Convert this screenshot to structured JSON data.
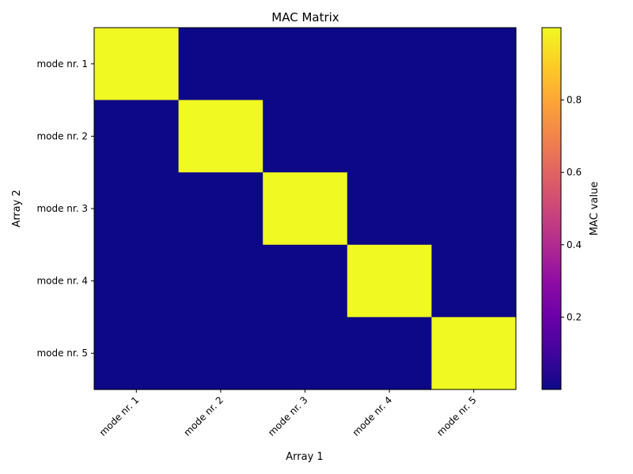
{
  "chart_data": {
    "type": "heatmap",
    "title": "MAC Matrix",
    "xlabel": "Array 1",
    "ylabel": "Array 2",
    "x_categories": [
      "mode nr. 1",
      "mode nr. 2",
      "mode nr. 3",
      "mode nr. 4",
      "mode nr. 5"
    ],
    "y_categories": [
      "mode nr. 1",
      "mode nr. 2",
      "mode nr. 3",
      "mode nr. 4",
      "mode nr. 5"
    ],
    "values": [
      [
        1.0,
        0.0,
        0.0,
        0.0,
        0.0
      ],
      [
        0.0,
        1.0,
        0.0,
        0.0,
        0.0
      ],
      [
        0.0,
        0.0,
        1.0,
        0.0,
        0.0
      ],
      [
        0.0,
        0.0,
        0.0,
        1.0,
        0.0
      ],
      [
        0.0,
        0.0,
        0.0,
        0.0,
        1.0
      ]
    ],
    "colormap": "plasma",
    "colorbar": {
      "label": "MAC value",
      "range": [
        0.0,
        1.0
      ],
      "ticks": [
        "0.2",
        "0.4",
        "0.6",
        "0.8"
      ],
      "tick_values": [
        0.2,
        0.4,
        0.6,
        0.8
      ]
    },
    "grid": false
  }
}
